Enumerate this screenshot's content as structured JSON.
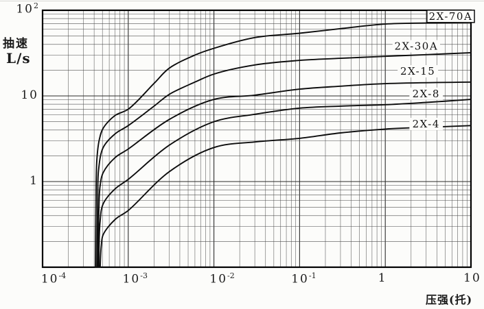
{
  "chart_data": {
    "type": "line",
    "title": "",
    "xlabel": "压强(托)",
    "ylabel_line1": "抽速",
    "ylabel_line2": "L/s",
    "x_scale": "log",
    "y_scale": "log",
    "xlim": [
      0.0001,
      10
    ],
    "ylim": [
      0.1,
      100
    ],
    "grid": "full log-log graph paper, minor lines 2-9 each decade, both axes",
    "legend_position": "labels beside curves, right side",
    "x_ticks": [
      {
        "value": 0.0001,
        "base": "10",
        "exp": "-4"
      },
      {
        "value": 0.001,
        "base": "10",
        "exp": "-3"
      },
      {
        "value": 0.01,
        "base": "10",
        "exp": "-2"
      },
      {
        "value": 0.1,
        "base": "10",
        "exp": "-1"
      },
      {
        "value": 1,
        "base": "1",
        "exp": ""
      },
      {
        "value": 10,
        "base": "10",
        "exp": ""
      }
    ],
    "y_ticks": [
      {
        "value": 100,
        "base": "10",
        "exp": "2"
      },
      {
        "value": 10,
        "base": "10",
        "exp": ""
      },
      {
        "value": 1,
        "base": "1",
        "exp": ""
      }
    ],
    "series": [
      {
        "name": "2X-70A",
        "label": {
          "text": "2X-70A",
          "anchor_p": 5.8,
          "anchor_s": 85,
          "boxed": true
        },
        "points": [
          [
            0.000415,
            0.1
          ],
          [
            0.00042,
            0.5
          ],
          [
            0.00043,
            1.8
          ],
          [
            0.00046,
            3.1
          ],
          [
            0.00051,
            4.2
          ],
          [
            0.0007,
            5.9
          ],
          [
            0.001,
            7.0
          ],
          [
            0.002,
            14
          ],
          [
            0.003,
            21
          ],
          [
            0.006,
            30
          ],
          [
            0.01,
            36
          ],
          [
            0.03,
            48
          ],
          [
            0.1,
            54
          ],
          [
            0.3,
            61
          ],
          [
            1,
            69
          ],
          [
            3,
            71
          ],
          [
            10,
            72
          ]
        ]
      },
      {
        "name": "2X-30A",
        "label": {
          "text": "2X-30A",
          "anchor_p": 2.3,
          "anchor_s": 38,
          "boxed": false
        },
        "points": [
          [
            0.00043,
            0.1
          ],
          [
            0.00044,
            0.6
          ],
          [
            0.00045,
            1.35
          ],
          [
            0.00051,
            2.5
          ],
          [
            0.0007,
            3.6
          ],
          [
            0.001,
            4.5
          ],
          [
            0.002,
            7.6
          ],
          [
            0.003,
            10.4
          ],
          [
            0.006,
            14.5
          ],
          [
            0.01,
            18
          ],
          [
            0.03,
            23
          ],
          [
            0.1,
            26
          ],
          [
            0.3,
            27.5
          ],
          [
            1,
            29
          ],
          [
            3,
            30.3
          ],
          [
            10,
            32
          ]
        ]
      },
      {
        "name": "2X-15",
        "label": {
          "text": "2X-15",
          "anchor_p": 2.4,
          "anchor_s": 19.4,
          "boxed": false
        },
        "points": [
          [
            0.000445,
            0.1
          ],
          [
            0.000455,
            0.5
          ],
          [
            0.00047,
            0.9
          ],
          [
            0.00051,
            1.27
          ],
          [
            0.0007,
            1.9
          ],
          [
            0.001,
            2.4
          ],
          [
            0.003,
            5.3
          ],
          [
            0.01,
            9.1
          ],
          [
            0.03,
            10.2
          ],
          [
            0.1,
            12
          ],
          [
            0.3,
            13
          ],
          [
            1,
            13.9
          ],
          [
            10,
            14.5
          ]
        ]
      },
      {
        "name": "2X-8",
        "label": {
          "text": "2X-8",
          "anchor_p": 3.0,
          "anchor_s": 10.6,
          "boxed": false
        },
        "points": [
          [
            0.000455,
            0.1
          ],
          [
            0.00047,
            0.35
          ],
          [
            0.00051,
            0.55
          ],
          [
            0.0007,
            0.82
          ],
          [
            0.001,
            1.06
          ],
          [
            0.003,
            2.65
          ],
          [
            0.01,
            5.0
          ],
          [
            0.03,
            6.1
          ],
          [
            0.1,
            7.2
          ],
          [
            0.3,
            7.6
          ],
          [
            1,
            7.9
          ],
          [
            3,
            8.4
          ],
          [
            10,
            9.1
          ]
        ]
      },
      {
        "name": "2X-4",
        "label": {
          "text": "2X-4",
          "anchor_p": 3.0,
          "anchor_s": 4.7,
          "boxed": false
        },
        "points": [
          [
            0.00047,
            0.1
          ],
          [
            0.000485,
            0.18
          ],
          [
            0.00051,
            0.24
          ],
          [
            0.0007,
            0.36
          ],
          [
            0.001,
            0.46
          ],
          [
            0.003,
            1.3
          ],
          [
            0.01,
            2.5
          ],
          [
            0.03,
            2.9
          ],
          [
            0.1,
            3.2
          ],
          [
            0.3,
            3.7
          ],
          [
            1,
            4.1
          ],
          [
            3,
            4.3
          ],
          [
            10,
            4.5
          ]
        ]
      }
    ],
    "colors": {
      "curve": "#0d0d0d",
      "grid_major": "#2b2b2b",
      "grid_minor": "#4a4a4a",
      "frame": "#000000",
      "background": "#fcfcfa"
    }
  }
}
